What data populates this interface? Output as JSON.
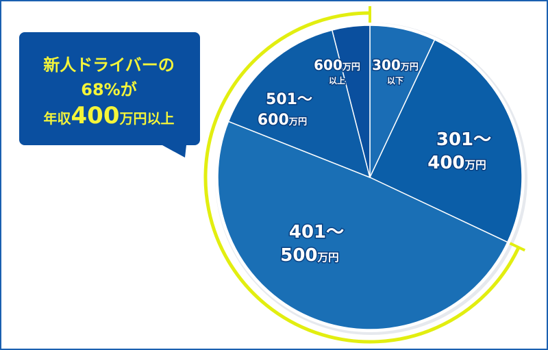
{
  "callout": {
    "line1": "新人ドライバーの",
    "line2": "68%が",
    "line3_prefix": "年収",
    "line3_number": "400",
    "line3_suffix": "万円以上"
  },
  "colors": {
    "frame": "#1a5fb0",
    "highlight_arc": "#e2ee10",
    "callout_bg": "#0a4fa0",
    "callout_text": "#f4f53a"
  },
  "chart_data": {
    "type": "pie",
    "start": "12 o'clock",
    "direction": "clockwise",
    "unit": "%",
    "slices": [
      {
        "label_num": "300",
        "label_unit": "万円",
        "label_sub": "以下",
        "value": 7,
        "color": "#1a6db5"
      },
      {
        "label_num": "301～",
        "label_sub_num": "400",
        "label_unit": "万円",
        "value": 25,
        "color": "#0b5ea8"
      },
      {
        "label_num": "401～",
        "label_sub_num": "500",
        "label_unit": "万円",
        "value": 49,
        "color": "#1a6fb5"
      },
      {
        "label_num": "501～",
        "label_sub_num": "600",
        "label_unit": "万円",
        "value": 15,
        "color": "#0d5da7"
      },
      {
        "label_num": "600",
        "label_unit": "万円",
        "label_sub": "以上",
        "value": 4,
        "color": "#0a4f9e"
      }
    ],
    "highlighted_share": 68,
    "highlighted_slices": [
      "401～500万円",
      "501～600万円",
      "600万円以上"
    ]
  }
}
